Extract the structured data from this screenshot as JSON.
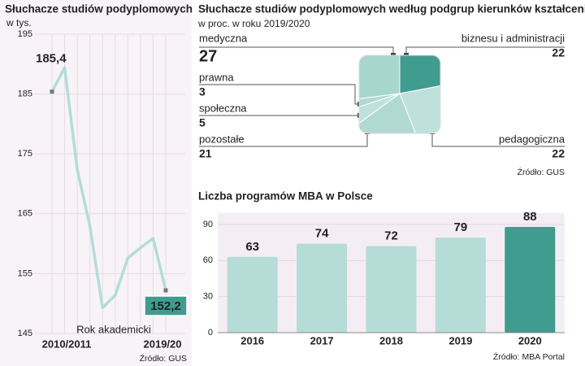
{
  "chart_data": [
    {
      "type": "line",
      "title": "Słuchacze studiów podyplomowych",
      "subtitle": "w tys.",
      "x_label": "Rok akademicki",
      "source": "Źródło: GUS",
      "categories": [
        "2010/2011",
        null,
        null,
        null,
        null,
        null,
        null,
        null,
        null,
        "2019/20"
      ],
      "values": [
        185.4,
        189.4,
        172.4,
        162.9,
        149.3,
        151.4,
        157.6,
        159.3,
        160.9,
        152.2
      ],
      "value_labels": [
        "185,4",
        null,
        null,
        null,
        null,
        null,
        null,
        null,
        null,
        "152,2"
      ],
      "color": "#b3ddd7",
      "ylim": [
        145,
        195
      ],
      "yticks": [
        145,
        155,
        165,
        175,
        185,
        195
      ],
      "grid": true
    },
    {
      "type": "pie",
      "title": "Słuchacze studiów podyplomowych według podgrup kierunków kształcenia",
      "subtitle": "w proc. w roku 2019/2020",
      "source": "Źródło: GUS",
      "categories": [
        "biznesu i administracji",
        "pedagogiczna",
        "pozostałe",
        "społeczna",
        "prawna",
        "medyczna"
      ],
      "values": [
        22,
        22,
        21,
        5,
        3,
        27
      ],
      "colors": [
        "#3f9c8f",
        "#bfe1dc",
        "#b1d9d3",
        "#bfe1dc",
        "#b1d9d3",
        "#a9d5cf"
      ]
    },
    {
      "type": "bar",
      "title": "Liczba programów MBA w Polsce",
      "source": "Źródło: MBA Portal",
      "categories": [
        "2016",
        "2017",
        "2018",
        "2019",
        "2020"
      ],
      "values": [
        63,
        74,
        72,
        79,
        88
      ],
      "colors": [
        "#b5dcd7",
        "#b5dcd7",
        "#b5dcd7",
        "#b5dcd7",
        "#3f9c8f"
      ],
      "ylim": [
        0,
        90
      ],
      "yticks": [
        0,
        30,
        60,
        90
      ],
      "grid": true
    }
  ]
}
